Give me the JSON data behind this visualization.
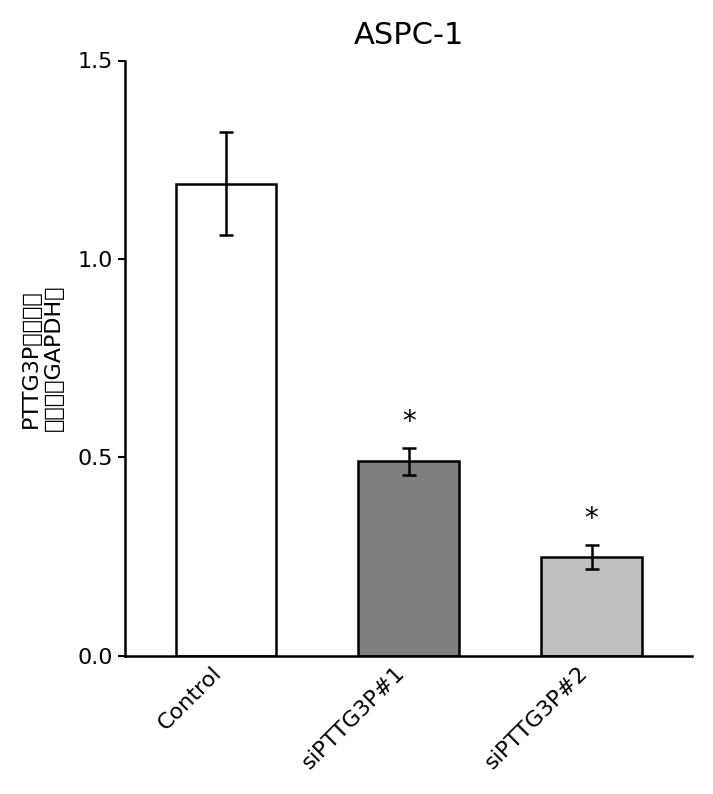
{
  "title": "ASPC-1",
  "categories": [
    "Control",
    "siPTTG3P#1",
    "siPTTG3P#2"
  ],
  "values": [
    1.19,
    0.49,
    0.25
  ],
  "errors": [
    0.13,
    0.035,
    0.03
  ],
  "bar_colors": [
    "#ffffff",
    "#7f7f7f",
    "#c0c0c0"
  ],
  "bar_edgecolors": [
    "#000000",
    "#000000",
    "#000000"
  ],
  "ylabel_line1": "PTTG3P表达水平",
  "ylabel_line2": "（相对于GAPDH）",
  "ylim": [
    0,
    1.5
  ],
  "yticks": [
    0,
    0.5,
    1.0,
    1.5
  ],
  "significance_bars": [
    1,
    2
  ],
  "sig_symbol": "*",
  "background_color": "#ffffff",
  "bar_width": 0.55,
  "title_fontsize": 22,
  "tick_fontsize": 16,
  "ylabel_fontsize": 16,
  "sig_fontsize": 20
}
